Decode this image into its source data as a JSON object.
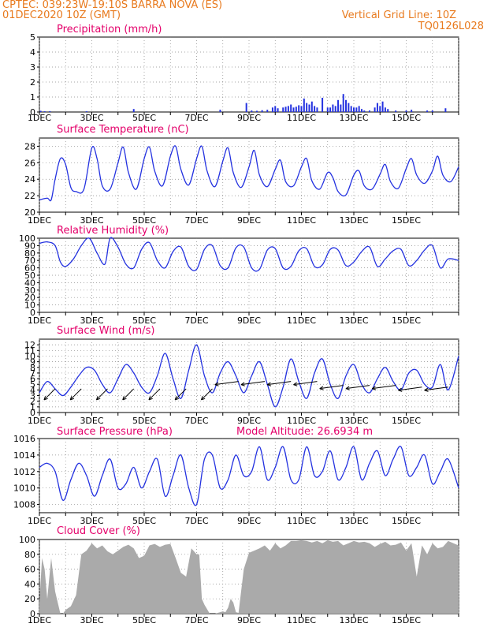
{
  "header": {
    "line1_left": "CPTEC:   039:23W-19:10S   BARRA NOVA (ES)",
    "line2_left": "01DEC2020 10Z (GMT)",
    "line2_right": "Vertical Grid Line: 10Z",
    "line3_right": "TQ0126L028"
  },
  "x_tick_labels": [
    "1DEC",
    "3DEC",
    "5DEC",
    "7DEC",
    "9DEC",
    "11DEC",
    "13DEC",
    "15DEC"
  ],
  "colors": {
    "header": "#e87a1e",
    "title": "#e4006a",
    "line": "#2432e0",
    "cloud": "#aaaaaa",
    "wind": "#000000"
  },
  "chart_data": [
    {
      "type": "bar",
      "title": "Precipitation (mm/h)",
      "ylim": [
        0,
        5
      ],
      "y_ticks": [
        "0",
        "1",
        "2",
        "3",
        "4",
        "5"
      ],
      "series": [
        {
          "x": [
            0.05,
            0.2,
            0.4,
            1.8,
            3.6,
            6.9,
            7.9,
            8.1,
            8.3,
            8.5,
            8.7,
            8.9,
            9.0,
            9.1,
            9.3,
            9.4,
            9.5,
            9.6,
            9.7,
            9.8,
            9.9,
            10.0,
            10.1,
            10.2,
            10.3,
            10.4,
            10.5,
            10.6,
            10.8,
            11.0,
            11.1,
            11.2,
            11.3,
            11.4,
            11.5,
            11.6,
            11.7,
            11.8,
            11.9,
            12.0,
            12.1,
            12.2,
            12.3,
            12.4,
            12.6,
            12.8,
            12.9,
            13.0,
            13.1,
            13.2,
            13.3,
            13.6,
            14.0,
            14.2,
            14.8,
            15.0,
            15.5
          ],
          "values": [
            0.08,
            0.05,
            0.06,
            0.05,
            0.2,
            0.15,
            0.6,
            0.1,
            0.08,
            0.12,
            0.15,
            0.3,
            0.4,
            0.25,
            0.3,
            0.35,
            0.4,
            0.5,
            0.3,
            0.35,
            0.45,
            0.4,
            0.9,
            0.6,
            0.5,
            0.7,
            0.4,
            0.3,
            0.95,
            0.3,
            0.3,
            0.5,
            0.4,
            0.8,
            0.5,
            1.2,
            0.8,
            0.6,
            0.4,
            0.3,
            0.3,
            0.4,
            0.2,
            0.1,
            0.1,
            0.3,
            0.6,
            0.4,
            0.7,
            0.3,
            0.2,
            0.1,
            0.1,
            0.15,
            0.1,
            0.1,
            0.25
          ]
        }
      ]
    },
    {
      "type": "line",
      "title": "Surface Temperature (nC)",
      "ylim": [
        20,
        29
      ],
      "y_ticks": [
        "20",
        "22",
        "24",
        "26",
        "28"
      ],
      "series": [
        {
          "x": [
            0,
            0.3,
            0.45,
            0.6,
            0.8,
            1.0,
            1.2,
            1.4,
            1.7,
            2.0,
            2.2,
            2.4,
            2.7,
            3.0,
            3.2,
            3.4,
            3.7,
            4.0,
            4.2,
            4.4,
            4.7,
            5.0,
            5.2,
            5.4,
            5.7,
            6.0,
            6.2,
            6.4,
            6.7,
            7.0,
            7.2,
            7.4,
            7.7,
            8.0,
            8.2,
            8.4,
            8.7,
            9.0,
            9.2,
            9.4,
            9.7,
            10.0,
            10.2,
            10.4,
            10.7,
            11.0,
            11.2,
            11.4,
            11.7,
            12.0,
            12.2,
            12.4,
            12.7,
            13.0,
            13.2,
            13.4,
            13.7,
            14.0,
            14.2,
            14.4,
            14.7,
            15.0,
            15.2,
            15.4,
            15.7,
            16.0
          ],
          "values": [
            21.5,
            21.7,
            21.5,
            24.0,
            26.5,
            25.8,
            23.0,
            22.5,
            22.8,
            27.8,
            26.5,
            23.2,
            22.8,
            26.0,
            27.9,
            24.8,
            22.8,
            26.5,
            27.9,
            25.0,
            23.2,
            26.8,
            28.0,
            25.2,
            23.3,
            26.5,
            28.0,
            25.0,
            23.1,
            26.2,
            27.8,
            24.8,
            23.0,
            25.5,
            27.5,
            24.5,
            23.1,
            25.2,
            26.3,
            23.7,
            23.2,
            25.5,
            26.5,
            23.8,
            22.8,
            24.8,
            24.2,
            22.5,
            22.1,
            24.5,
            25.0,
            23.2,
            22.8,
            24.6,
            25.8,
            23.7,
            22.9,
            25.3,
            26.5,
            24.5,
            23.5,
            25.0,
            26.8,
            24.5,
            23.7,
            25.5
          ]
        }
      ]
    },
    {
      "type": "line",
      "title": "Relative Humidity (%)",
      "ylim": [
        0,
        100
      ],
      "y_ticks": [
        "0",
        "10",
        "20",
        "30",
        "40",
        "50",
        "60",
        "70",
        "80",
        "90",
        "100"
      ],
      "series": [
        {
          "x": [
            0,
            0.3,
            0.6,
            0.8,
            1.0,
            1.3,
            1.6,
            1.9,
            2.2,
            2.5,
            2.7,
            3.0,
            3.3,
            3.6,
            3.9,
            4.2,
            4.5,
            4.8,
            5.1,
            5.4,
            5.7,
            6.0,
            6.3,
            6.6,
            6.9,
            7.2,
            7.5,
            7.8,
            8.1,
            8.4,
            8.7,
            9.0,
            9.3,
            9.6,
            9.9,
            10.2,
            10.5,
            10.8,
            11.1,
            11.4,
            11.7,
            12.0,
            12.3,
            12.6,
            12.9,
            13.2,
            13.5,
            13.8,
            14.1,
            14.4,
            14.7,
            15.0,
            15.3,
            15.6,
            16.0
          ],
          "values": [
            93,
            95,
            90,
            68,
            62,
            72,
            90,
            100,
            80,
            65,
            100,
            88,
            65,
            60,
            85,
            94,
            70,
            60,
            82,
            88,
            62,
            58,
            85,
            90,
            63,
            60,
            87,
            88,
            60,
            58,
            84,
            86,
            60,
            62,
            83,
            86,
            62,
            64,
            85,
            84,
            63,
            68,
            82,
            88,
            62,
            72,
            83,
            85,
            63,
            70,
            84,
            90,
            60,
            72,
            70
          ]
        }
      ]
    },
    {
      "type": "line",
      "title": "Surface Wind (m/s)",
      "ylim": [
        0,
        13
      ],
      "y_ticks": [
        "0",
        "1",
        "2",
        "3",
        "4",
        "5",
        "6",
        "7",
        "8",
        "9",
        "10",
        "11",
        "12"
      ],
      "series": [
        {
          "x": [
            0,
            0.3,
            0.6,
            0.9,
            1.2,
            1.5,
            1.8,
            2.1,
            2.4,
            2.7,
            3.0,
            3.3,
            3.6,
            3.9,
            4.2,
            4.5,
            4.8,
            5.1,
            5.4,
            5.7,
            6.0,
            6.3,
            6.6,
            6.9,
            7.2,
            7.5,
            7.8,
            8.1,
            8.4,
            8.7,
            9.0,
            9.3,
            9.6,
            9.9,
            10.2,
            10.5,
            10.8,
            11.1,
            11.4,
            11.7,
            12.0,
            12.3,
            12.6,
            12.9,
            13.2,
            13.5,
            13.8,
            14.1,
            14.4,
            14.7,
            15.0,
            15.3,
            15.6,
            16.0
          ],
          "values": [
            3.5,
            5.5,
            4.2,
            3.0,
            4.5,
            6.5,
            8.0,
            7.5,
            5.0,
            3.5,
            6.0,
            8.5,
            7.0,
            4.5,
            3.5,
            6.5,
            10.5,
            6.0,
            2.5,
            7.5,
            12.0,
            6.5,
            3.5,
            7.0,
            9.0,
            6.5,
            3.5,
            6.5,
            9.0,
            5.0,
            1.0,
            4.5,
            9.5,
            5.5,
            2.5,
            7.0,
            9.5,
            5.0,
            2.5,
            6.5,
            8.5,
            5.0,
            3.5,
            6.0,
            8.0,
            5.5,
            4.0,
            7.0,
            7.5,
            5.0,
            4.5,
            8.5,
            4.0,
            10.0
          ]
        }
      ],
      "wind_arrows": [
        {
          "x": 0.6,
          "y": 4.2,
          "dir": "sw"
        },
        {
          "x": 1.6,
          "y": 4.2,
          "dir": "sw"
        },
        {
          "x": 2.6,
          "y": 4.2,
          "dir": "sw"
        },
        {
          "x": 3.6,
          "y": 4.2,
          "dir": "sw"
        },
        {
          "x": 4.6,
          "y": 4.2,
          "dir": "sw"
        },
        {
          "x": 5.6,
          "y": 4.2,
          "dir": "sw"
        },
        {
          "x": 6.6,
          "y": 4.2,
          "dir": "sw"
        },
        {
          "x": 7.6,
          "y": 5.5,
          "dir": "w"
        },
        {
          "x": 8.6,
          "y": 5.5,
          "dir": "w"
        },
        {
          "x": 9.6,
          "y": 5.5,
          "dir": "w"
        },
        {
          "x": 10.6,
          "y": 5.5,
          "dir": "w"
        },
        {
          "x": 11.6,
          "y": 4.8,
          "dir": "w"
        },
        {
          "x": 12.6,
          "y": 4.8,
          "dir": "w"
        },
        {
          "x": 13.6,
          "y": 4.8,
          "dir": "w"
        },
        {
          "x": 14.6,
          "y": 4.5,
          "dir": "w"
        },
        {
          "x": 15.6,
          "y": 4.5,
          "dir": "w"
        }
      ]
    },
    {
      "type": "line",
      "title": "Surface Pressure (hPa)",
      "annotation": "Model Altitude: 26.6934  m",
      "ylim": [
        1007,
        1016
      ],
      "y_ticks": [
        "1008",
        "1010",
        "1012",
        "1014",
        "1016"
      ],
      "series": [
        {
          "x": [
            0,
            0.3,
            0.6,
            0.9,
            1.2,
            1.5,
            1.8,
            2.1,
            2.4,
            2.7,
            3.0,
            3.3,
            3.6,
            3.9,
            4.2,
            4.5,
            4.8,
            5.1,
            5.4,
            5.7,
            6.0,
            6.3,
            6.6,
            6.9,
            7.2,
            7.5,
            7.8,
            8.1,
            8.4,
            8.7,
            9.0,
            9.3,
            9.6,
            9.9,
            10.2,
            10.5,
            10.8,
            11.1,
            11.4,
            11.7,
            12.0,
            12.3,
            12.6,
            12.9,
            13.2,
            13.5,
            13.8,
            14.1,
            14.4,
            14.7,
            15.0,
            15.3,
            15.6,
            16.0
          ],
          "values": [
            1012.5,
            1013.0,
            1012.0,
            1008.5,
            1011.0,
            1013.0,
            1011.5,
            1009.0,
            1011.5,
            1013.5,
            1010.0,
            1010.5,
            1012.5,
            1010.0,
            1012.0,
            1013.5,
            1009.0,
            1011.5,
            1014.0,
            1010.0,
            1008.0,
            1013.5,
            1014.0,
            1010.0,
            1011.0,
            1014.0,
            1011.5,
            1012.0,
            1015.0,
            1011.0,
            1012.5,
            1015.0,
            1011.0,
            1011.0,
            1015.0,
            1011.5,
            1012.0,
            1014.5,
            1011.0,
            1012.5,
            1015.0,
            1011.0,
            1013.0,
            1014.5,
            1011.5,
            1013.5,
            1015.0,
            1011.5,
            1012.5,
            1014.0,
            1010.5,
            1012.0,
            1013.5,
            1010.0
          ]
        }
      ]
    },
    {
      "type": "area",
      "title": "Cloud Cover (%)",
      "ylim": [
        0,
        100
      ],
      "y_ticks": [
        "0",
        "20",
        "40",
        "60",
        "80",
        "100"
      ],
      "series": [
        {
          "x": [
            0,
            0.1,
            0.2,
            0.3,
            0.45,
            0.6,
            0.7,
            0.8,
            0.9,
            1.0,
            1.2,
            1.4,
            1.6,
            1.8,
            2.0,
            2.2,
            2.4,
            2.6,
            2.8,
            3.0,
            3.2,
            3.4,
            3.6,
            3.8,
            4.0,
            4.2,
            4.4,
            4.6,
            4.8,
            5.0,
            5.2,
            5.4,
            5.6,
            5.8,
            6.0,
            6.1,
            6.2,
            6.3,
            6.5,
            6.7,
            6.9,
            7.0,
            7.1,
            7.2,
            7.3,
            7.4,
            7.5,
            7.6,
            7.8,
            8.0,
            8.2,
            8.4,
            8.6,
            8.8,
            9.0,
            9.2,
            9.4,
            9.6,
            9.8,
            10.0,
            10.2,
            10.4,
            10.6,
            10.8,
            11.0,
            11.2,
            11.4,
            11.6,
            11.8,
            12.0,
            12.2,
            12.4,
            12.6,
            12.8,
            13.0,
            13.2,
            13.4,
            13.6,
            13.8,
            14.0,
            14.2,
            14.4,
            14.6,
            14.8,
            15.0,
            15.2,
            15.4,
            15.6,
            15.8,
            16.0
          ],
          "values": [
            15,
            75,
            60,
            20,
            75,
            30,
            15,
            0,
            0,
            5,
            10,
            25,
            80,
            85,
            95,
            88,
            92,
            84,
            80,
            85,
            90,
            93,
            88,
            75,
            78,
            92,
            94,
            90,
            93,
            94,
            75,
            55,
            50,
            88,
            80,
            80,
            20,
            12,
            0,
            0,
            2,
            3,
            2,
            8,
            20,
            15,
            2,
            1,
            60,
            82,
            85,
            88,
            92,
            85,
            95,
            88,
            92,
            98,
            98,
            99,
            98,
            96,
            98,
            95,
            99,
            97,
            98,
            92,
            95,
            98,
            96,
            97,
            95,
            90,
            94,
            97,
            92,
            93,
            96,
            85,
            95,
            50,
            92,
            80,
            95,
            88,
            90,
            98,
            95,
            92
          ]
        }
      ]
    }
  ]
}
